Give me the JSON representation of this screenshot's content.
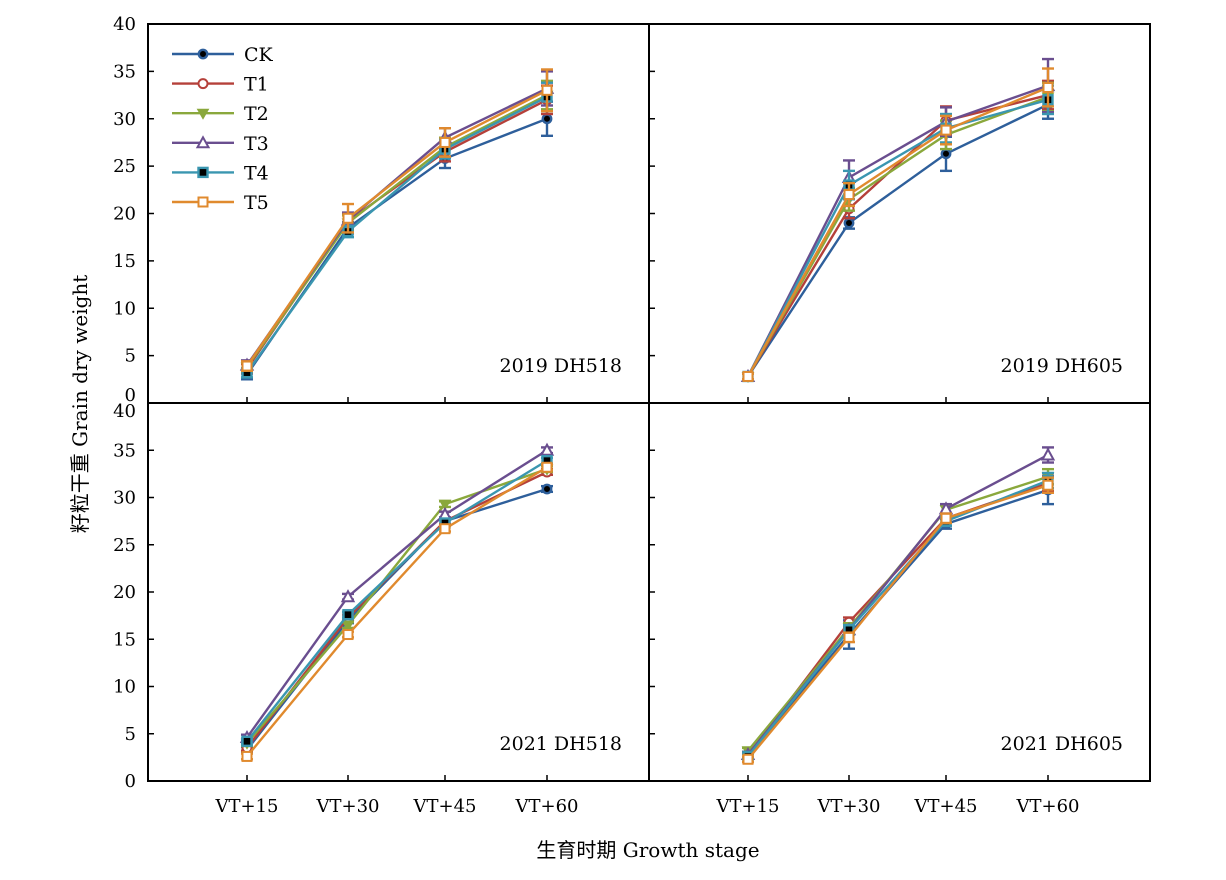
{
  "chart_data": {
    "type": "line",
    "ylabel": "籽粒干重 Grain dry weight",
    "xlabel": "生育时期 Growth stage",
    "categories": [
      "VT+15",
      "VT+30",
      "VT+45",
      "VT+60"
    ],
    "ylim": [
      0,
      40
    ],
    "yticks": [
      0,
      5,
      10,
      15,
      20,
      25,
      30,
      35,
      40
    ],
    "legend_position": "top-left",
    "series_styles": [
      {
        "name": "CK",
        "color": "#2e5f9b",
        "marker": "filled-circle"
      },
      {
        "name": "T1",
        "color": "#b5403a",
        "marker": "open-circle"
      },
      {
        "name": "T2",
        "color": "#8aa83c",
        "marker": "filled-triangle-down"
      },
      {
        "name": "T3",
        "color": "#6a4e8f",
        "marker": "open-triangle-up"
      },
      {
        "name": "T4",
        "color": "#3a96b0",
        "marker": "square-dot"
      },
      {
        "name": "T5",
        "color": "#e08a2e",
        "marker": "open-square"
      }
    ],
    "panels": [
      {
        "label": "2019 DH518",
        "series": [
          {
            "name": "CK",
            "values": [
              3.0,
              18.5,
              25.8,
              30.0
            ],
            "errors": [
              0.5,
              0.6,
              1.0,
              1.8
            ]
          },
          {
            "name": "T1",
            "values": [
              3.6,
              19.2,
              26.5,
              32.0
            ],
            "errors": [
              0.5,
              0.8,
              1.0,
              1.5
            ]
          },
          {
            "name": "T2",
            "values": [
              3.8,
              19.0,
              27.0,
              32.5
            ],
            "errors": [
              0.5,
              0.8,
              1.0,
              1.5
            ]
          },
          {
            "name": "T3",
            "values": [
              4.0,
              19.3,
              28.0,
              33.2
            ],
            "errors": [
              0.5,
              0.8,
              1.0,
              1.8
            ]
          },
          {
            "name": "T4",
            "values": [
              3.2,
              18.1,
              26.8,
              32.3
            ],
            "errors": [
              0.5,
              0.6,
              1.0,
              1.5
            ]
          },
          {
            "name": "T5",
            "values": [
              3.9,
              19.5,
              27.5,
              33.0
            ],
            "errors": [
              0.5,
              1.5,
              1.5,
              2.2
            ]
          }
        ]
      },
      {
        "label": "2019 DH605",
        "series": [
          {
            "name": "CK",
            "values": [
              2.8,
              19.0,
              26.3,
              31.5
            ],
            "errors": [
              0.3,
              0.6,
              1.8,
              1.5
            ]
          },
          {
            "name": "T1",
            "values": [
              2.8,
              20.5,
              29.8,
              32.5
            ],
            "errors": [
              0.3,
              1.0,
              1.5,
              1.5
            ]
          },
          {
            "name": "T2",
            "values": [
              2.8,
              21.5,
              28.3,
              32.3
            ],
            "errors": [
              0.3,
              1.2,
              1.5,
              1.5
            ]
          },
          {
            "name": "T3",
            "values": [
              2.8,
              23.8,
              29.7,
              33.5
            ],
            "errors": [
              0.3,
              1.8,
              1.5,
              2.8
            ]
          },
          {
            "name": "T4",
            "values": [
              2.8,
              23.0,
              29.0,
              32.0
            ],
            "errors": [
              0.3,
              1.5,
              1.5,
              1.5
            ]
          },
          {
            "name": "T5",
            "values": [
              2.8,
              22.0,
              28.8,
              33.3
            ],
            "errors": [
              0.3,
              1.2,
              1.5,
              2.0
            ]
          }
        ]
      },
      {
        "label": "2021 DH518",
        "series": [
          {
            "name": "CK",
            "values": [
              3.3,
              17.0,
              27.5,
              30.9
            ],
            "errors": [
              0.3,
              0.3,
              0.3,
              0.3
            ]
          },
          {
            "name": "T1",
            "values": [
              3.5,
              17.3,
              27.5,
              32.7
            ],
            "errors": [
              0.3,
              0.3,
              0.3,
              0.3
            ]
          },
          {
            "name": "T2",
            "values": [
              4.0,
              16.5,
              29.3,
              33.0
            ],
            "errors": [
              0.3,
              0.3,
              0.3,
              0.3
            ]
          },
          {
            "name": "T3",
            "values": [
              4.6,
              19.5,
              28.2,
              35.0
            ],
            "errors": [
              0.3,
              0.3,
              0.3,
              0.3
            ]
          },
          {
            "name": "T4",
            "values": [
              4.2,
              17.6,
              27.3,
              33.9
            ],
            "errors": [
              0.3,
              0.3,
              0.3,
              0.3
            ]
          },
          {
            "name": "T5",
            "values": [
              2.6,
              15.5,
              26.7,
              33.2
            ],
            "errors": [
              0.3,
              0.3,
              0.3,
              0.3
            ]
          }
        ]
      },
      {
        "label": "2021 DH605",
        "series": [
          {
            "name": "CK",
            "values": [
              2.6,
              15.5,
              27.2,
              30.8
            ],
            "errors": [
              0.3,
              1.5,
              0.5,
              1.5
            ]
          },
          {
            "name": "T1",
            "values": [
              2.7,
              16.8,
              27.8,
              31.5
            ],
            "errors": [
              0.3,
              0.5,
              0.5,
              0.8
            ]
          },
          {
            "name": "T2",
            "values": [
              3.2,
              16.2,
              28.7,
              32.2
            ],
            "errors": [
              0.3,
              0.5,
              0.5,
              0.8
            ]
          },
          {
            "name": "T3",
            "values": [
              2.8,
              16.0,
              28.8,
              34.5
            ],
            "errors": [
              0.3,
              0.5,
              0.5,
              0.8
            ]
          },
          {
            "name": "T4",
            "values": [
              2.6,
              16.0,
              27.5,
              31.8
            ],
            "errors": [
              0.3,
              0.5,
              0.5,
              0.8
            ]
          },
          {
            "name": "T5",
            "values": [
              2.3,
              15.2,
              27.8,
              31.3
            ],
            "errors": [
              0.3,
              0.5,
              0.5,
              0.8
            ]
          }
        ]
      }
    ]
  }
}
